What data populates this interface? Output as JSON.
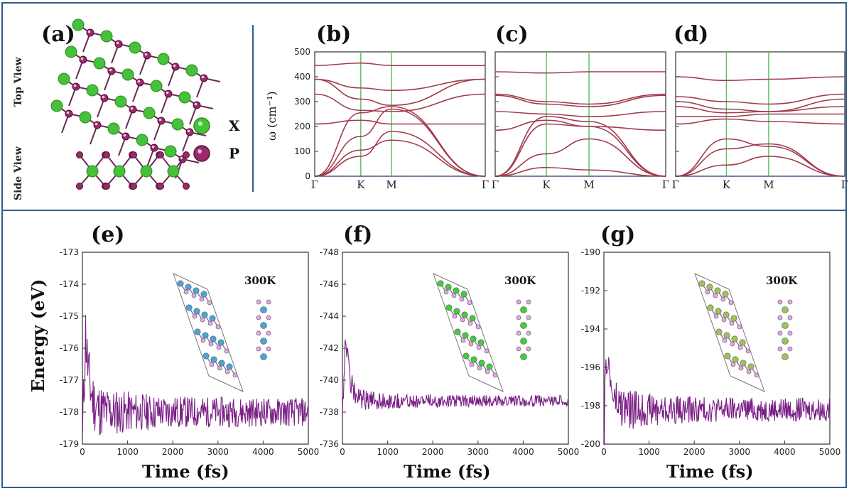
{
  "panel_labels": [
    "(a)",
    "(b)",
    "(c)",
    "(d)",
    "(e)",
    "(f)",
    "(g)"
  ],
  "structure": {
    "top_view_label": "Top View",
    "side_view_label": "Side View",
    "legend": [
      {
        "label": "X",
        "color": "#45c13a"
      },
      {
        "label": "P",
        "color": "#9b2a6b"
      }
    ]
  },
  "phonon": {
    "ylabel": "ω (cm⁻¹)",
    "kpoints": [
      "Γ",
      "K",
      "M",
      "Γ"
    ],
    "band_color": "#a13a4c",
    "line_color": "#5cc46c"
  },
  "md": {
    "ylabel": "Energy (eV)",
    "xlabel": "Time (fs)",
    "temperature": "300K",
    "trace_color": "#7a1f86"
  },
  "chart_data": [
    {
      "panel": "(b)",
      "type": "line",
      "ylim": [
        0,
        500
      ],
      "yticks": [
        0,
        100,
        200,
        300,
        400,
        500
      ],
      "x": [
        0,
        0.27,
        0.45,
        1
      ],
      "series": [
        {
          "values": [
            0,
            80,
            180,
            0
          ]
        },
        {
          "values": [
            0,
            105,
            145,
            0
          ]
        },
        {
          "values": [
            0,
            160,
            270,
            0
          ]
        },
        {
          "values": [
            210,
            225,
            210,
            210
          ]
        },
        {
          "values": [
            0,
            255,
            280,
            0
          ]
        },
        {
          "values": [
            330,
            265,
            260,
            330
          ]
        },
        {
          "values": [
            390,
            310,
            285,
            390
          ]
        },
        {
          "values": [
            390,
            355,
            345,
            390
          ]
        },
        {
          "values": [
            445,
            455,
            445,
            445
          ]
        }
      ]
    },
    {
      "panel": "(c)",
      "type": "line",
      "ylim": [
        0,
        500
      ],
      "yticks": [
        0,
        100,
        200,
        300,
        400,
        500
      ],
      "x": [
        0,
        0.3,
        0.55,
        1
      ],
      "series": [
        {
          "values": [
            0,
            35,
            25,
            0
          ]
        },
        {
          "values": [
            0,
            90,
            150,
            0
          ]
        },
        {
          "values": [
            0,
            210,
            200,
            0
          ]
        },
        {
          "values": [
            185,
            225,
            200,
            185
          ]
        },
        {
          "values": [
            0,
            240,
            220,
            0
          ]
        },
        {
          "values": [
            260,
            250,
            240,
            260
          ]
        },
        {
          "values": [
            325,
            290,
            280,
            325
          ]
        },
        {
          "values": [
            330,
            300,
            290,
            330
          ]
        },
        {
          "values": [
            420,
            415,
            420,
            420
          ]
        }
      ]
    },
    {
      "panel": "(d)",
      "type": "line",
      "ylim": [
        0,
        500
      ],
      "yticks": [
        0,
        100,
        200,
        300,
        400,
        500
      ],
      "x": [
        0,
        0.3,
        0.55,
        1
      ],
      "series": [
        {
          "values": [
            0,
            45,
            80,
            0
          ]
        },
        {
          "values": [
            0,
            110,
            130,
            0
          ]
        },
        {
          "values": [
            0,
            150,
            120,
            0
          ]
        },
        {
          "values": [
            210,
            230,
            220,
            210
          ]
        },
        {
          "values": [
            240,
            240,
            250,
            250
          ]
        },
        {
          "values": [
            280,
            255,
            260,
            280
          ]
        },
        {
          "values": [
            300,
            270,
            260,
            310
          ]
        },
        {
          "values": [
            320,
            300,
            290,
            330
          ]
        },
        {
          "values": [
            400,
            385,
            390,
            400
          ]
        }
      ]
    },
    {
      "panel": "(e)",
      "type": "line",
      "xlim": [
        0,
        5000
      ],
      "xticks": [
        0,
        1000,
        2000,
        3000,
        4000,
        5000
      ],
      "ylim": [
        -179,
        -173
      ],
      "yticks": [
        -173,
        -174,
        -175,
        -176,
        -177,
        -178,
        -179
      ],
      "y_inverted": false,
      "trace": {
        "start": -178.9,
        "peak": -175.5,
        "mean": -178.0,
        "amplitude": 0.45
      }
    },
    {
      "panel": "(f)",
      "type": "line",
      "xlim": [
        0,
        5000
      ],
      "xticks": [
        0,
        1000,
        2000,
        3000,
        4000,
        5000
      ],
      "ylim": [
        -748,
        -736
      ],
      "yticks": [
        -748,
        -746,
        -744,
        -742,
        -740,
        -738,
        -736
      ],
      "y_inverted": true,
      "trace": {
        "start": -738.0,
        "peak": -743.0,
        "mean": -738.7,
        "amplitude": 0.35
      }
    },
    {
      "panel": "(g)",
      "type": "line",
      "xlim": [
        0,
        5000
      ],
      "xticks": [
        0,
        1000,
        2000,
        3000,
        4000,
        5000
      ],
      "ylim": [
        -200,
        -190
      ],
      "yticks": [
        -190,
        -192,
        -194,
        -196,
        -198,
        -200
      ],
      "y_inverted": false,
      "trace": {
        "start": -199.5,
        "peak": -195.0,
        "mean": -198.2,
        "amplitude": 0.6
      }
    }
  ]
}
